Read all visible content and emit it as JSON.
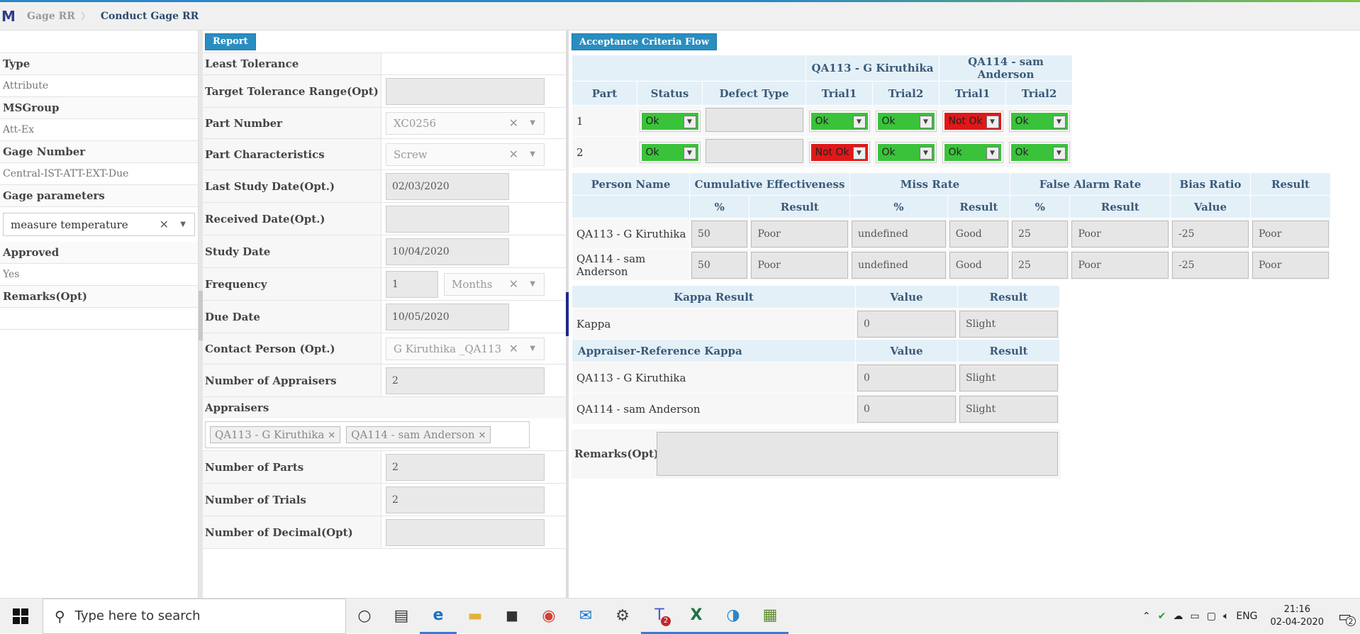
{
  "breadcrumb": {
    "items": [
      "Gage RR",
      "Conduct Gage RR"
    ]
  },
  "left_panel": {
    "fields": [
      {
        "label": "Type",
        "value": "Attribute"
      },
      {
        "label": "MSGroup",
        "value": "Att-Ex"
      },
      {
        "label": "Gage Number",
        "value": "Central-IST-ATT-EXT-Due"
      }
    ],
    "gage_parameters_label": "Gage parameters",
    "gage_parameters_value": "measure temperature",
    "approved_label": "Approved",
    "approved_value": "Yes",
    "remarks_label": "Remarks(Opt)",
    "remarks_value": ""
  },
  "middle": {
    "report_button": "Report",
    "least_tolerance_label": "Least Tolerance",
    "target_tolerance_label": "Target Tolerance Range(Opt)",
    "part_number_label": "Part Number",
    "part_number_value": "XC0256",
    "part_characteristics_label": "Part Characteristics",
    "part_characteristics_value": "Screw",
    "last_study_date_label": "Last Study Date(Opt.)",
    "last_study_date_value": "02/03/2020",
    "received_date_label": "Received Date(Opt.)",
    "study_date_label": "Study Date",
    "study_date_value": "10/04/2020",
    "frequency_label": "Frequency",
    "frequency_value": "1",
    "frequency_unit": "Months",
    "due_date_label": "Due Date",
    "due_date_value": "10/05/2020",
    "contact_person_label": "Contact Person (Opt.)",
    "contact_person_value": "G Kiruthika _QA113",
    "num_appraisers_label": "Number of Appraisers",
    "num_appraisers_value": "2",
    "appraisers_label": "Appraisers",
    "appraisers": [
      "QA113 - G Kiruthika",
      "QA114 - sam Anderson"
    ],
    "num_parts_label": "Number of Parts",
    "num_parts_value": "2",
    "num_trials_label": "Number of Trials",
    "num_trials_value": "2",
    "num_decimal_label": "Number of Decimal(Opt)"
  },
  "right": {
    "acceptance_button": "Acceptance Criteria Flow",
    "trial_table": {
      "appraiser_headers": [
        "QA113 - G Kiruthika",
        "QA114 - sam Anderson"
      ],
      "col_headers": [
        "Part",
        "Status",
        "Defect Type",
        "Trial1",
        "Trial2",
        "Trial1",
        "Trial2"
      ],
      "rows": [
        {
          "part": "1",
          "status": "Ok",
          "t1": "Ok",
          "t2": "Ok",
          "t3": "Not Ok",
          "t4": "Ok"
        },
        {
          "part": "2",
          "status": "Ok",
          "t1": "Not Ok",
          "t2": "Ok",
          "t3": "Ok",
          "t4": "Ok"
        }
      ]
    },
    "effect_table": {
      "headers": [
        "Person Name",
        "Cumulative Effectiveness",
        "Miss Rate",
        "False Alarm Rate",
        "Bias Ratio",
        "Result"
      ],
      "subheaders": [
        "%",
        "Result",
        "%",
        "Result",
        "%",
        "Result",
        "Value"
      ],
      "rows": [
        {
          "name": "QA113 - G Kiruthika",
          "ce_pct": "50",
          "ce_res": "Poor",
          "mr_pct": "undefined",
          "mr_res": "Good",
          "fa_pct": "25",
          "fa_res": "Poor",
          "bias": "-25",
          "result": "Poor"
        },
        {
          "name": "QA114 - sam Anderson",
          "ce_pct": "50",
          "ce_res": "Poor",
          "mr_pct": "undefined",
          "mr_res": "Good",
          "fa_pct": "25",
          "fa_res": "Poor",
          "bias": "-25",
          "result": "Poor"
        }
      ]
    },
    "kappa_table": {
      "kappa_result_header": "Kappa Result",
      "value_header": "Value",
      "result_header": "Result",
      "kappa_label": "Kappa",
      "kappa_value": "0",
      "kappa_result": "Slight",
      "appraiser_ref_header": "Appraiser-Reference Kappa",
      "rows": [
        {
          "name": "QA113 - G Kiruthika",
          "value": "0",
          "result": "Slight"
        },
        {
          "name": "QA114 - sam Anderson",
          "value": "0",
          "result": "Slight"
        }
      ]
    },
    "remarks_label": "Remarks(Opt)"
  },
  "taskbar": {
    "search_placeholder": "Type here to search",
    "language": "ENG",
    "time": "21:16",
    "date": "02-04-2020",
    "notification_count": "2",
    "teams_badge": "2"
  }
}
